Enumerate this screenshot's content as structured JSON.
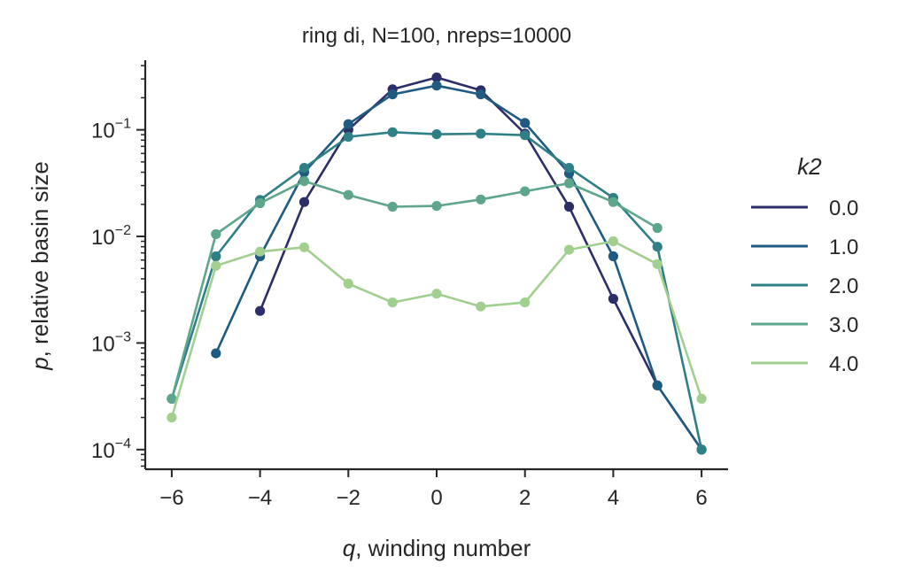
{
  "chart_data": {
    "type": "line",
    "title": "ring di, N=100, nreps=10000",
    "xlabel": {
      "var": "q",
      "text": ", winding number"
    },
    "ylabel": {
      "var": "p",
      "text": ", relative basin size"
    },
    "y_scale": "log",
    "xlim": [
      -6.6,
      6.6
    ],
    "ylim": [
      6.54e-05,
      0.45
    ],
    "x_ticks": [
      -6,
      -4,
      -2,
      0,
      2,
      4,
      6
    ],
    "x_tick_labels": [
      "−6",
      "−4",
      "−2",
      "0",
      "2",
      "4",
      "6"
    ],
    "y_ticks": [
      0.0001,
      0.001,
      0.01,
      0.1
    ],
    "y_tick_labels": [
      {
        "base": "10",
        "exp": "−4"
      },
      {
        "base": "10",
        "exp": "−3"
      },
      {
        "base": "10",
        "exp": "−2"
      },
      {
        "base": "10",
        "exp": "−1"
      }
    ],
    "grid": false,
    "legend": {
      "title": "k2",
      "position": "right"
    },
    "series": [
      {
        "name": "0.0",
        "color": "#2c2e68",
        "x": [
          -4,
          -3,
          -2,
          -1,
          0,
          1,
          2,
          3,
          4,
          5,
          6
        ],
        "y": [
          0.002,
          0.021,
          0.1,
          0.24,
          0.31,
          0.235,
          0.092,
          0.019,
          0.0026,
          0.0004,
          0.0001
        ]
      },
      {
        "name": "1.0",
        "color": "#1f5b80",
        "x": [
          -5,
          -4,
          -3,
          -2,
          -1,
          0,
          1,
          2,
          3,
          4,
          5,
          6
        ],
        "y": [
          0.0008,
          0.0065,
          0.04,
          0.113,
          0.215,
          0.26,
          0.215,
          0.116,
          0.039,
          0.0065,
          0.0004,
          0.0001
        ]
      },
      {
        "name": "2.0",
        "color": "#2f8086",
        "x": [
          -6,
          -5,
          -4,
          -3,
          -2,
          -1,
          0,
          1,
          2,
          3,
          4,
          5,
          6
        ],
        "y": [
          0.0003,
          0.0065,
          0.022,
          0.044,
          0.086,
          0.095,
          0.091,
          0.092,
          0.089,
          0.044,
          0.023,
          0.008,
          0.0001
        ]
      },
      {
        "name": "3.0",
        "color": "#5ea68b",
        "x": [
          -6,
          -5,
          -4,
          -3,
          -2,
          -1,
          0,
          1,
          2,
          3,
          4,
          5
        ],
        "y": [
          0.0003,
          0.0105,
          0.0205,
          0.033,
          0.0245,
          0.019,
          0.0193,
          0.0222,
          0.0265,
          0.0315,
          0.021,
          0.012
        ]
      },
      {
        "name": "4.0",
        "color": "#a1cf8f",
        "x": [
          -6,
          -5,
          -4,
          -3,
          -2,
          -1,
          0,
          1,
          2,
          3,
          4,
          5,
          6
        ],
        "y": [
          0.0002,
          0.0053,
          0.0072,
          0.0079,
          0.0036,
          0.0024,
          0.0029,
          0.0022,
          0.0024,
          0.0075,
          0.009,
          0.0055,
          0.0003
        ]
      }
    ]
  }
}
